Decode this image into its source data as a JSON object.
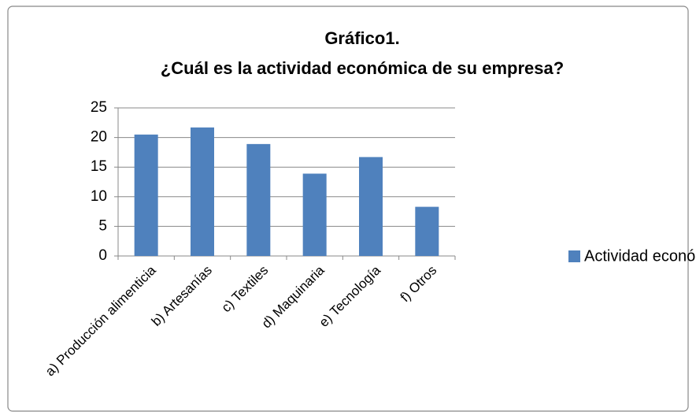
{
  "chart_data": {
    "type": "bar",
    "title": [
      "Gráfico1.",
      "¿Cuál es la actividad económica de su empresa?"
    ],
    "categories": [
      "a) Producción alimenticia",
      "b) Artesanías",
      "c) Textiles",
      "d) Maquinaria",
      "e) Tecnología",
      "f) Otros"
    ],
    "series": [
      {
        "name": "Actividad económica",
        "color": "#4f81bd",
        "values": [
          20.5,
          21.7,
          18.9,
          13.9,
          16.7,
          8.3
        ]
      }
    ],
    "ylim": [
      0,
      25
    ],
    "yticks": [
      0,
      5,
      10,
      15,
      20,
      25
    ],
    "grid": true,
    "legend": "right"
  }
}
